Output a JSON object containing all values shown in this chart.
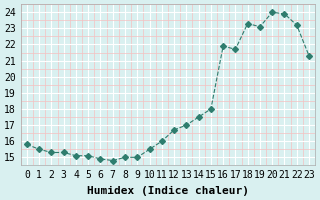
{
  "xlabel": "Humidex (Indice chaleur)",
  "x_values": [
    0,
    1,
    2,
    3,
    4,
    5,
    6,
    7,
    8,
    9,
    10,
    11,
    12,
    13,
    14,
    15,
    16,
    17,
    18,
    19,
    20,
    21,
    22,
    23
  ],
  "y_values": [
    15.8,
    15.5,
    15.3,
    15.3,
    15.1,
    15.1,
    14.9,
    14.8,
    15.0,
    15.0,
    15.5,
    16.0,
    16.7,
    17.0,
    17.5,
    18.0,
    21.9,
    21.7,
    23.3,
    23.1,
    24.0,
    23.9,
    23.2,
    21.3
  ],
  "line_color": "#2e7d6e",
  "marker": "D",
  "marker_size": 3,
  "bg_color": "#d9f0f0",
  "grid_color": "#ffffff",
  "grid_minor_color": "#f5c0c0",
  "ylim": [
    14.5,
    24.5
  ],
  "yticks": [
    15,
    16,
    17,
    18,
    19,
    20,
    21,
    22,
    23,
    24
  ],
  "xlim": [
    -0.5,
    23.5
  ],
  "xticks": [
    0,
    1,
    2,
    3,
    4,
    5,
    6,
    7,
    8,
    9,
    10,
    11,
    12,
    13,
    14,
    15,
    16,
    17,
    18,
    19,
    20,
    21,
    22,
    23
  ],
  "title_fontsize": 7,
  "label_fontsize": 8,
  "tick_fontsize": 7
}
